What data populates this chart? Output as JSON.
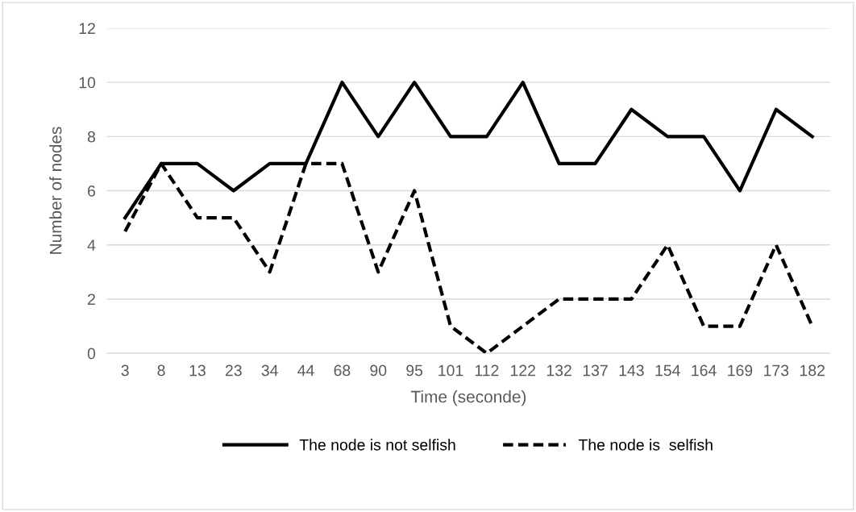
{
  "chart_data": {
    "type": "line",
    "xlabel": "Time (seconde)",
    "ylabel": "Number of nodes",
    "categories": [
      "3",
      "8",
      "13",
      "23",
      "34",
      "44",
      "68",
      "90",
      "95",
      "101",
      "112",
      "122",
      "132",
      "137",
      "143",
      "154",
      "164",
      "169",
      "173",
      "182"
    ],
    "series": [
      {
        "name": "The node is not selfish",
        "color": "#000000",
        "line_style": "solid",
        "values": [
          5,
          7,
          7,
          6,
          7,
          7,
          10,
          8,
          10,
          8,
          8,
          10,
          7,
          7,
          9,
          8,
          8,
          6,
          9,
          8
        ]
      },
      {
        "name": "The node is  selfish",
        "color": "#000000",
        "line_style": "dashed",
        "values": [
          4.5,
          7,
          5,
          5,
          3,
          7,
          7,
          3,
          6,
          1,
          0,
          1,
          2,
          2,
          2,
          4,
          1,
          1,
          4,
          1
        ]
      }
    ],
    "ylim": [
      0,
      12
    ],
    "yticks": [
      0,
      2,
      4,
      6,
      8,
      10,
      12
    ],
    "grid": "y",
    "legend": "bottom",
    "marker": "none"
  }
}
